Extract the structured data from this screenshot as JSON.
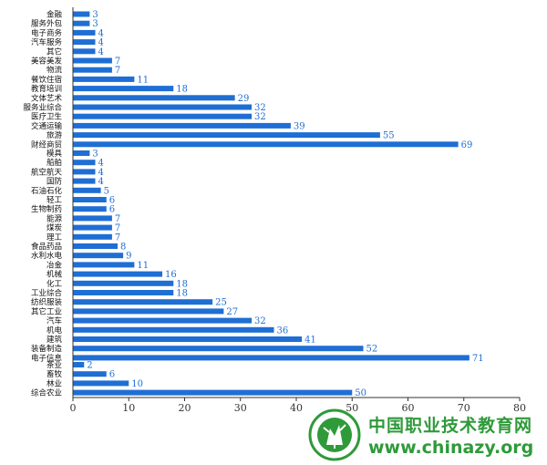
{
  "chart_data": {
    "type": "bar",
    "orientation": "horizontal",
    "xlim": [
      0,
      80
    ],
    "xticks": [
      0,
      10,
      20,
      30,
      40,
      50,
      60,
      70,
      80
    ],
    "bar_color": "#1f6ed4",
    "label_color": "#1f6ed4",
    "grid": false,
    "groups": [
      {
        "categories": [
          "金融",
          "服务外包",
          "电子商务",
          "汽车服务",
          "其它",
          "美容美发",
          "物流",
          "餐饮住宿",
          "教育培训",
          "文体艺术",
          "服务业综合",
          "医疗卫生",
          "交通运输",
          "旅游",
          "财经商贸"
        ],
        "values": [
          3,
          3,
          4,
          4,
          4,
          7,
          7,
          11,
          18,
          29,
          32,
          32,
          39,
          55,
          69
        ]
      },
      {
        "categories": [
          "模具",
          "船舶",
          "航空航天",
          "国防",
          "石油石化",
          "轻工",
          "生物制药",
          "能源",
          "煤炭",
          "理工",
          "食品药品",
          "水利水电",
          "冶金",
          "机械",
          "化工",
          "工业综合",
          "纺织服装",
          "其它工业",
          "汽车",
          "机电",
          "建筑",
          "装备制造",
          "电子信息"
        ],
        "values": [
          3,
          4,
          4,
          4,
          5,
          6,
          6,
          7,
          7,
          7,
          8,
          9,
          11,
          16,
          18,
          18,
          25,
          27,
          32,
          36,
          41,
          52,
          71
        ]
      },
      {
        "categories": [
          "茶业",
          "畜牧",
          "林业",
          "综合农业"
        ],
        "values": [
          2,
          6,
          10,
          50
        ]
      }
    ]
  },
  "watermark": {
    "name": "中国职业技术教育网",
    "url": "www.chinazy.org",
    "color": "#2f9a3a"
  }
}
